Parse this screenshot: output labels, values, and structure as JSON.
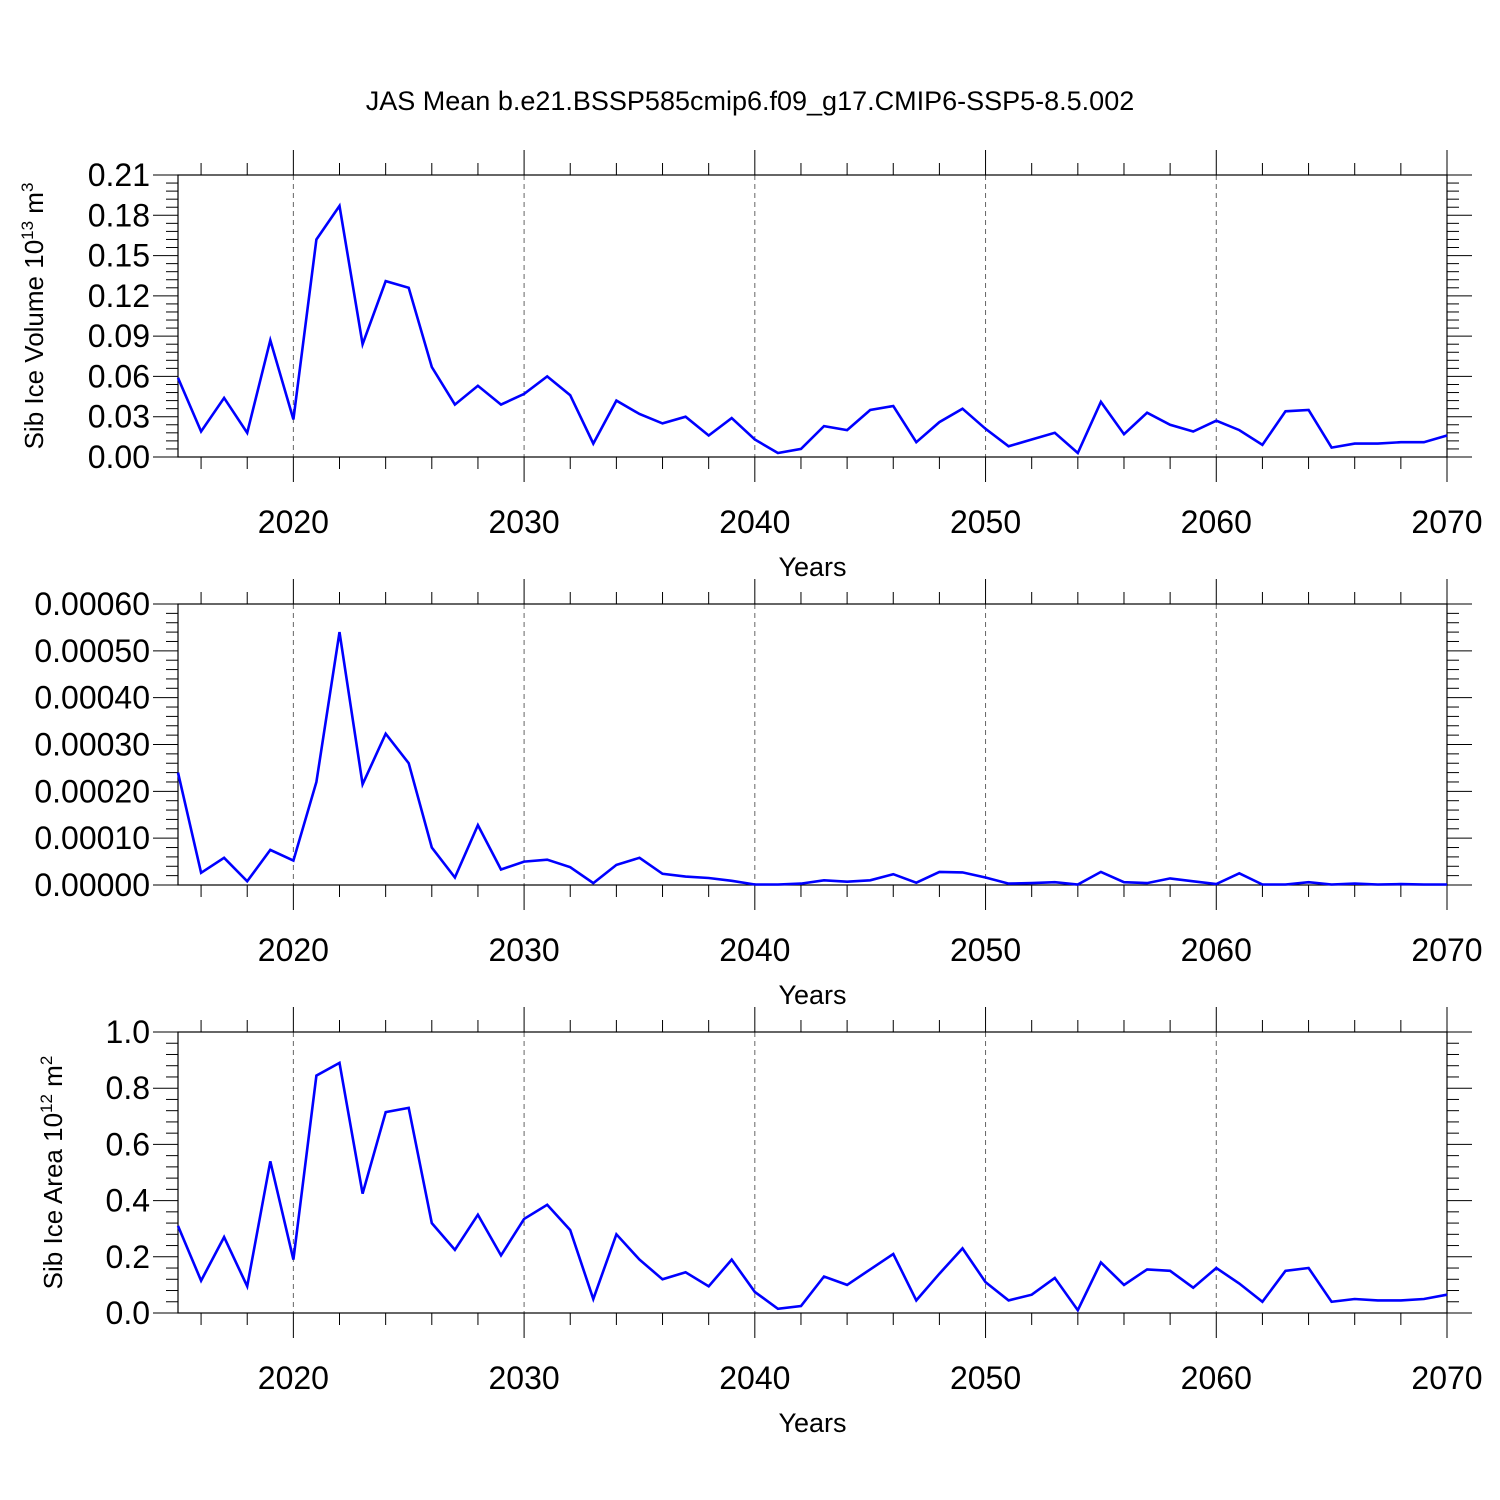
{
  "title": "JAS Mean b.e21.BSSP585cmip6.f09_g17.CMIP6-SSP5-8.5.002",
  "colors": {
    "line": "#0000ff",
    "axis": "#000000",
    "grid": "#666666"
  },
  "chart_data": [
    {
      "type": "line",
      "ylabel": "Sib Ice Volume 10",
      "ylabel_exp": "13",
      "ylabel_unit": " m",
      "ylabel_unit_exp": "3",
      "xlabel": "Years",
      "xlim": [
        2015,
        2070
      ],
      "ylim": [
        0,
        0.21
      ],
      "yticks": [
        0,
        0.03,
        0.06,
        0.09,
        0.12,
        0.15,
        0.18,
        0.21
      ],
      "ytick_labels": [
        "0.00",
        "0.03",
        "0.06",
        "0.09",
        "0.12",
        "0.15",
        "0.18",
        "0.21"
      ],
      "xticks": [
        2020,
        2030,
        2040,
        2050,
        2060,
        2070
      ],
      "xtick_labels": [
        "2020",
        "2030",
        "2040",
        "2050",
        "2060",
        "2070"
      ],
      "grid": "vertical dashed at major x ticks",
      "x": [
        2015,
        2016,
        2017,
        2018,
        2019,
        2020,
        2021,
        2022,
        2023,
        2024,
        2025,
        2026,
        2027,
        2028,
        2029,
        2030,
        2031,
        2032,
        2033,
        2034,
        2035,
        2036,
        2037,
        2038,
        2039,
        2040,
        2041,
        2042,
        2043,
        2044,
        2045,
        2046,
        2047,
        2048,
        2049,
        2050,
        2051,
        2052,
        2053,
        2054,
        2055,
        2056,
        2057,
        2058,
        2059,
        2060,
        2061,
        2062,
        2063,
        2064,
        2065,
        2066,
        2067,
        2068,
        2069,
        2070
      ],
      "y": [
        0.059,
        0.019,
        0.044,
        0.018,
        0.087,
        0.028,
        0.162,
        0.187,
        0.084,
        0.131,
        0.126,
        0.067,
        0.039,
        0.053,
        0.039,
        0.047,
        0.06,
        0.046,
        0.01,
        0.042,
        0.032,
        0.025,
        0.03,
        0.016,
        0.029,
        0.013,
        0.003,
        0.006,
        0.023,
        0.02,
        0.035,
        0.038,
        0.011,
        0.026,
        0.036,
        0.021,
        0.008,
        0.013,
        0.018,
        0.003,
        0.041,
        0.017,
        0.033,
        0.024,
        0.019,
        0.027,
        0.02,
        0.009,
        0.034,
        0.035,
        0.007,
        0.01,
        0.01,
        0.011,
        0.011,
        0.016
      ]
    },
    {
      "type": "line",
      "ylabel": "",
      "xlabel": "Years",
      "xlim": [
        2015,
        2070
      ],
      "ylim": [
        0,
        0.0006
      ],
      "yticks": [
        0,
        0.0001,
        0.0002,
        0.0003,
        0.0004,
        0.0005,
        0.0006
      ],
      "ytick_labels": [
        "0.00000",
        "0.00010",
        "0.00020",
        "0.00030",
        "0.00040",
        "0.00050",
        "0.00060"
      ],
      "xticks": [
        2020,
        2030,
        2040,
        2050,
        2060,
        2070
      ],
      "xtick_labels": [
        "2020",
        "2030",
        "2040",
        "2050",
        "2060",
        "2070"
      ],
      "grid": "vertical dashed at major x ticks",
      "x": [
        2015,
        2016,
        2017,
        2018,
        2019,
        2020,
        2021,
        2022,
        2023,
        2024,
        2025,
        2026,
        2027,
        2028,
        2029,
        2030,
        2031,
        2032,
        2033,
        2034,
        2035,
        2036,
        2037,
        2038,
        2039,
        2040,
        2041,
        2042,
        2043,
        2044,
        2045,
        2046,
        2047,
        2048,
        2049,
        2050,
        2051,
        2052,
        2053,
        2054,
        2055,
        2056,
        2057,
        2058,
        2059,
        2060,
        2061,
        2062,
        2063,
        2064,
        2065,
        2066,
        2067,
        2068,
        2069,
        2070
      ],
      "y": [
        0.00024,
        2.6e-05,
        5.8e-05,
        8e-06,
        7.5e-05,
        5.2e-05,
        0.00022,
        0.00054,
        0.000215,
        0.000323,
        0.00026,
        8e-05,
        1.6e-05,
        0.000128,
        3.3e-05,
        5e-05,
        5.4e-05,
        3.8e-05,
        4e-06,
        4.3e-05,
        5.8e-05,
        2.4e-05,
        1.8e-05,
        1.5e-05,
        9e-06,
        1e-06,
        1e-06,
        3e-06,
        1e-05,
        7e-06,
        1e-05,
        2.3e-05,
        5e-06,
        2.8e-05,
        2.7e-05,
        1.6e-05,
        3e-06,
        4e-06,
        6e-06,
        1e-06,
        2.8e-05,
        6e-06,
        4e-06,
        1.4e-05,
        8e-06,
        2e-06,
        2.5e-05,
        1e-06,
        1e-06,
        6e-06,
        1e-06,
        3e-06,
        1e-06,
        2e-06,
        1e-06,
        1e-06
      ]
    },
    {
      "type": "line",
      "ylabel": "Sib Ice Area 10",
      "ylabel_exp": "12",
      "ylabel_unit": " m",
      "ylabel_unit_exp": "2",
      "xlabel": "Years",
      "xlim": [
        2015,
        2070
      ],
      "ylim": [
        0,
        1.0
      ],
      "yticks": [
        0,
        0.2,
        0.4,
        0.6,
        0.8,
        1.0
      ],
      "ytick_labels": [
        "0.0",
        "0.2",
        "0.4",
        "0.6",
        "0.8",
        "1.0"
      ],
      "xticks": [
        2020,
        2030,
        2040,
        2050,
        2060,
        2070
      ],
      "xtick_labels": [
        "2020",
        "2030",
        "2040",
        "2050",
        "2060",
        "2070"
      ],
      "grid": "vertical dashed at major x ticks",
      "x": [
        2015,
        2016,
        2017,
        2018,
        2019,
        2020,
        2021,
        2022,
        2023,
        2024,
        2025,
        2026,
        2027,
        2028,
        2029,
        2030,
        2031,
        2032,
        2033,
        2034,
        2035,
        2036,
        2037,
        2038,
        2039,
        2040,
        2041,
        2042,
        2043,
        2044,
        2045,
        2046,
        2047,
        2048,
        2049,
        2050,
        2051,
        2052,
        2053,
        2054,
        2055,
        2056,
        2057,
        2058,
        2059,
        2060,
        2061,
        2062,
        2063,
        2064,
        2065,
        2066,
        2067,
        2068,
        2069,
        2070
      ],
      "y": [
        0.31,
        0.115,
        0.27,
        0.095,
        0.54,
        0.19,
        0.845,
        0.89,
        0.425,
        0.715,
        0.73,
        0.32,
        0.225,
        0.35,
        0.205,
        0.335,
        0.385,
        0.295,
        0.05,
        0.28,
        0.19,
        0.12,
        0.145,
        0.095,
        0.19,
        0.075,
        0.015,
        0.025,
        0.13,
        0.1,
        0.155,
        0.21,
        0.045,
        0.14,
        0.23,
        0.11,
        0.045,
        0.065,
        0.125,
        0.01,
        0.18,
        0.1,
        0.155,
        0.15,
        0.09,
        0.16,
        0.105,
        0.04,
        0.15,
        0.16,
        0.04,
        0.05,
        0.045,
        0.045,
        0.05,
        0.065
      ]
    }
  ]
}
